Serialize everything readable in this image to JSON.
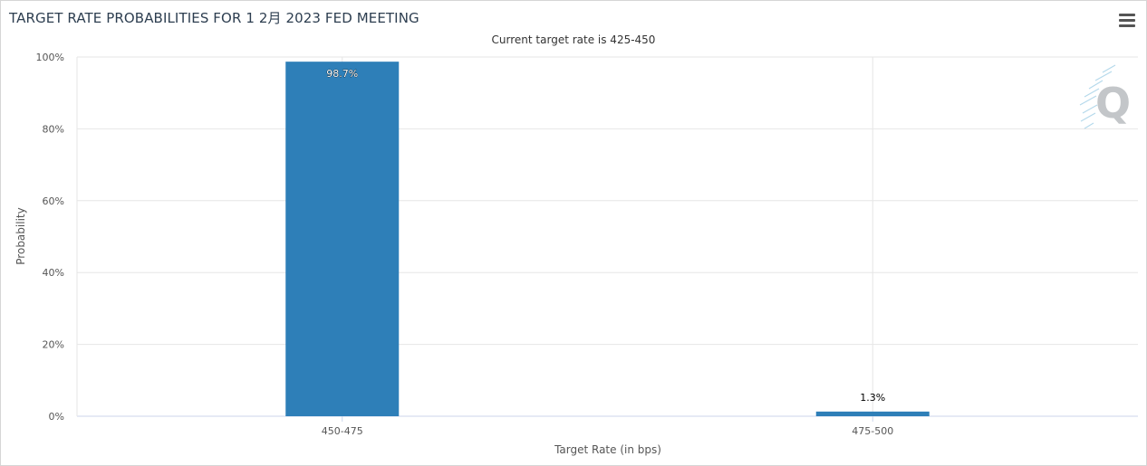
{
  "title": "TARGET RATE PROBABILITIES FOR 1 2月 2023 FED MEETING",
  "subtitle": "Current target rate is 425-450",
  "menu_icon": "hamburger-menu-icon",
  "watermark_icon": "q-logo-icon",
  "colors": {
    "bar": "#2e7fb8",
    "grid": "#e6e6e6",
    "axis": "#ccd6eb"
  },
  "chart_data": {
    "type": "bar",
    "title": "TARGET RATE PROBABILITIES FOR 1 2月 2023 FED MEETING",
    "subtitle": "Current target rate is 425-450",
    "xlabel": "Target Rate (in bps)",
    "ylabel": "Probability",
    "categories": [
      "450-475",
      "475-500"
    ],
    "values": [
      98.7,
      1.3
    ],
    "data_labels": [
      "98.7%",
      "1.3%"
    ],
    "ylim": [
      0,
      100
    ],
    "yticks": [
      "0%",
      "20%",
      "40%",
      "60%",
      "80%",
      "100%"
    ],
    "grid": true,
    "legend": "none"
  }
}
